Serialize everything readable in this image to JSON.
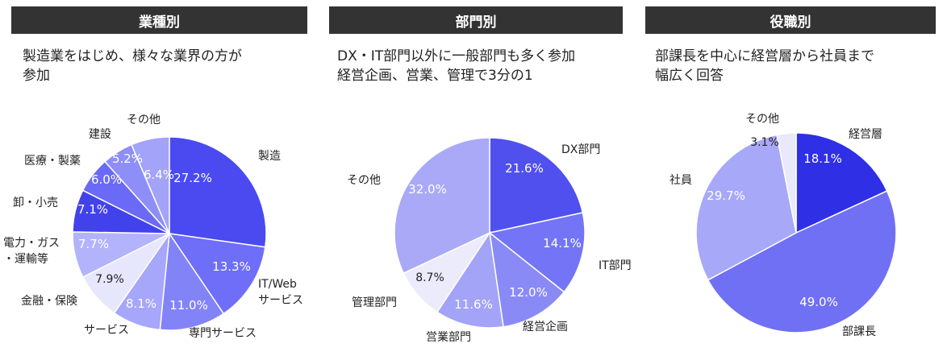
{
  "chart_data": [
    {
      "type": "pie",
      "title": "業種別",
      "subtitle": [
        "製造業をはじめ、様々な業界の方が",
        "参加"
      ],
      "slices": [
        {
          "label": "製造",
          "value": 27.2,
          "value_label": "27.2%",
          "color": "#4A4AF0"
        },
        {
          "label": "IT/Web\nサービス",
          "value": 13.3,
          "value_label": "13.3%",
          "color": "#6E6EF8"
        },
        {
          "label": "専門サービス",
          "value": 11.0,
          "value_label": "11.0%",
          "color": "#8383F8"
        },
        {
          "label": "サービス",
          "value": 8.1,
          "value_label": "8.1%",
          "color": "#A6A6FA"
        },
        {
          "label": "金融・保険",
          "value": 7.9,
          "value_label": "7.9%",
          "color": "#E6E6FC"
        },
        {
          "label": "電力・ガス\n・運輸等",
          "value": 7.7,
          "value_label": "7.7%",
          "color": "#B3B3FC"
        },
        {
          "label": "卸・小売",
          "value": 7.1,
          "value_label": "7.1%",
          "color": "#4242EC"
        },
        {
          "label": "医療・製薬",
          "value": 6.0,
          "value_label": "6.0%",
          "color": "#6A6AF6"
        },
        {
          "label": "建設",
          "value": 5.2,
          "value_label": "5.2%",
          "color": "#8E8EF8"
        },
        {
          "label": "その他",
          "value": 6.4,
          "value_label": "6.4%",
          "color": "#A3A3F9"
        }
      ]
    },
    {
      "type": "pie",
      "title": "部門別",
      "subtitle": [
        "DX・IT部門以外に一般部門も多く参加",
        "経営企画、営業、管理で3分の1"
      ],
      "slices": [
        {
          "label": "DX部門",
          "value": 21.6,
          "value_label": "21.6%",
          "color": "#5050EE"
        },
        {
          "label": "IT部門",
          "value": 14.1,
          "value_label": "14.1%",
          "color": "#7474F6"
        },
        {
          "label": "経営企画",
          "value": 12.0,
          "value_label": "12.0%",
          "color": "#8A8AF6"
        },
        {
          "label": "営業部門",
          "value": 11.6,
          "value_label": "11.6%",
          "color": "#A3A3F8"
        },
        {
          "label": "管理部門",
          "value": 8.7,
          "value_label": "8.7%",
          "color": "#EBEBFC"
        },
        {
          "label": "その他",
          "value": 32.0,
          "value_label": "32.0%",
          "color": "#A9A9F8"
        }
      ]
    },
    {
      "type": "pie",
      "title": "役職別",
      "subtitle": [
        "部課長を中心に経営層から社員まで",
        "幅広く回答"
      ],
      "slices": [
        {
          "label": "経営層",
          "value": 18.1,
          "value_label": "18.1%",
          "color": "#2F2FE6"
        },
        {
          "label": "部課長",
          "value": 49.0,
          "value_label": "49.0%",
          "color": "#7070F4"
        },
        {
          "label": "社員",
          "value": 29.7,
          "value_label": "29.7%",
          "color": "#A8A8F8"
        },
        {
          "label": "その他",
          "value": 3.1,
          "value_label": "3.1%",
          "color": "#E9E9FC"
        }
      ]
    }
  ]
}
